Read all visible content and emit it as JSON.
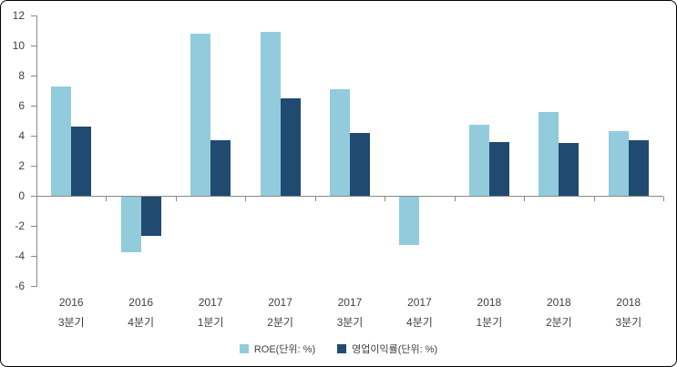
{
  "chart_data": {
    "type": "bar",
    "title": "",
    "xlabel": "",
    "ylabel": "",
    "categories": [
      {
        "line1": "2016",
        "line2": "3분기"
      },
      {
        "line1": "2016",
        "line2": "4분기"
      },
      {
        "line1": "2017",
        "line2": "1분기"
      },
      {
        "line1": "2017",
        "line2": "2분기"
      },
      {
        "line1": "2017",
        "line2": "3분기"
      },
      {
        "line1": "2017",
        "line2": "4분기"
      },
      {
        "line1": "2018",
        "line2": "1분기"
      },
      {
        "line1": "2018",
        "line2": "2분기"
      },
      {
        "line1": "2018",
        "line2": "3분기"
      }
    ],
    "series": [
      {
        "id": "roe",
        "name": "ROE(단위: %)",
        "color": "#92cbdc",
        "values": [
          7.3,
          -3.7,
          10.8,
          10.9,
          7.1,
          -3.2,
          4.7,
          5.6,
          4.3
        ]
      },
      {
        "id": "operating-margin",
        "name": "영업이익률(단위: %)",
        "color": "#204a70",
        "values": [
          4.6,
          -2.6,
          3.7,
          6.5,
          4.2,
          0,
          3.6,
          3.5,
          3.7
        ]
      }
    ],
    "yticks": [
      12,
      10,
      8,
      6,
      4,
      2,
      0,
      -2,
      -4,
      -6
    ],
    "ylim": [
      -6,
      12
    ],
    "grid": false,
    "legend_position": "bottom",
    "axis_color": "#898989",
    "text_color": "#3f3f3f",
    "background_color": "#ffffff"
  }
}
